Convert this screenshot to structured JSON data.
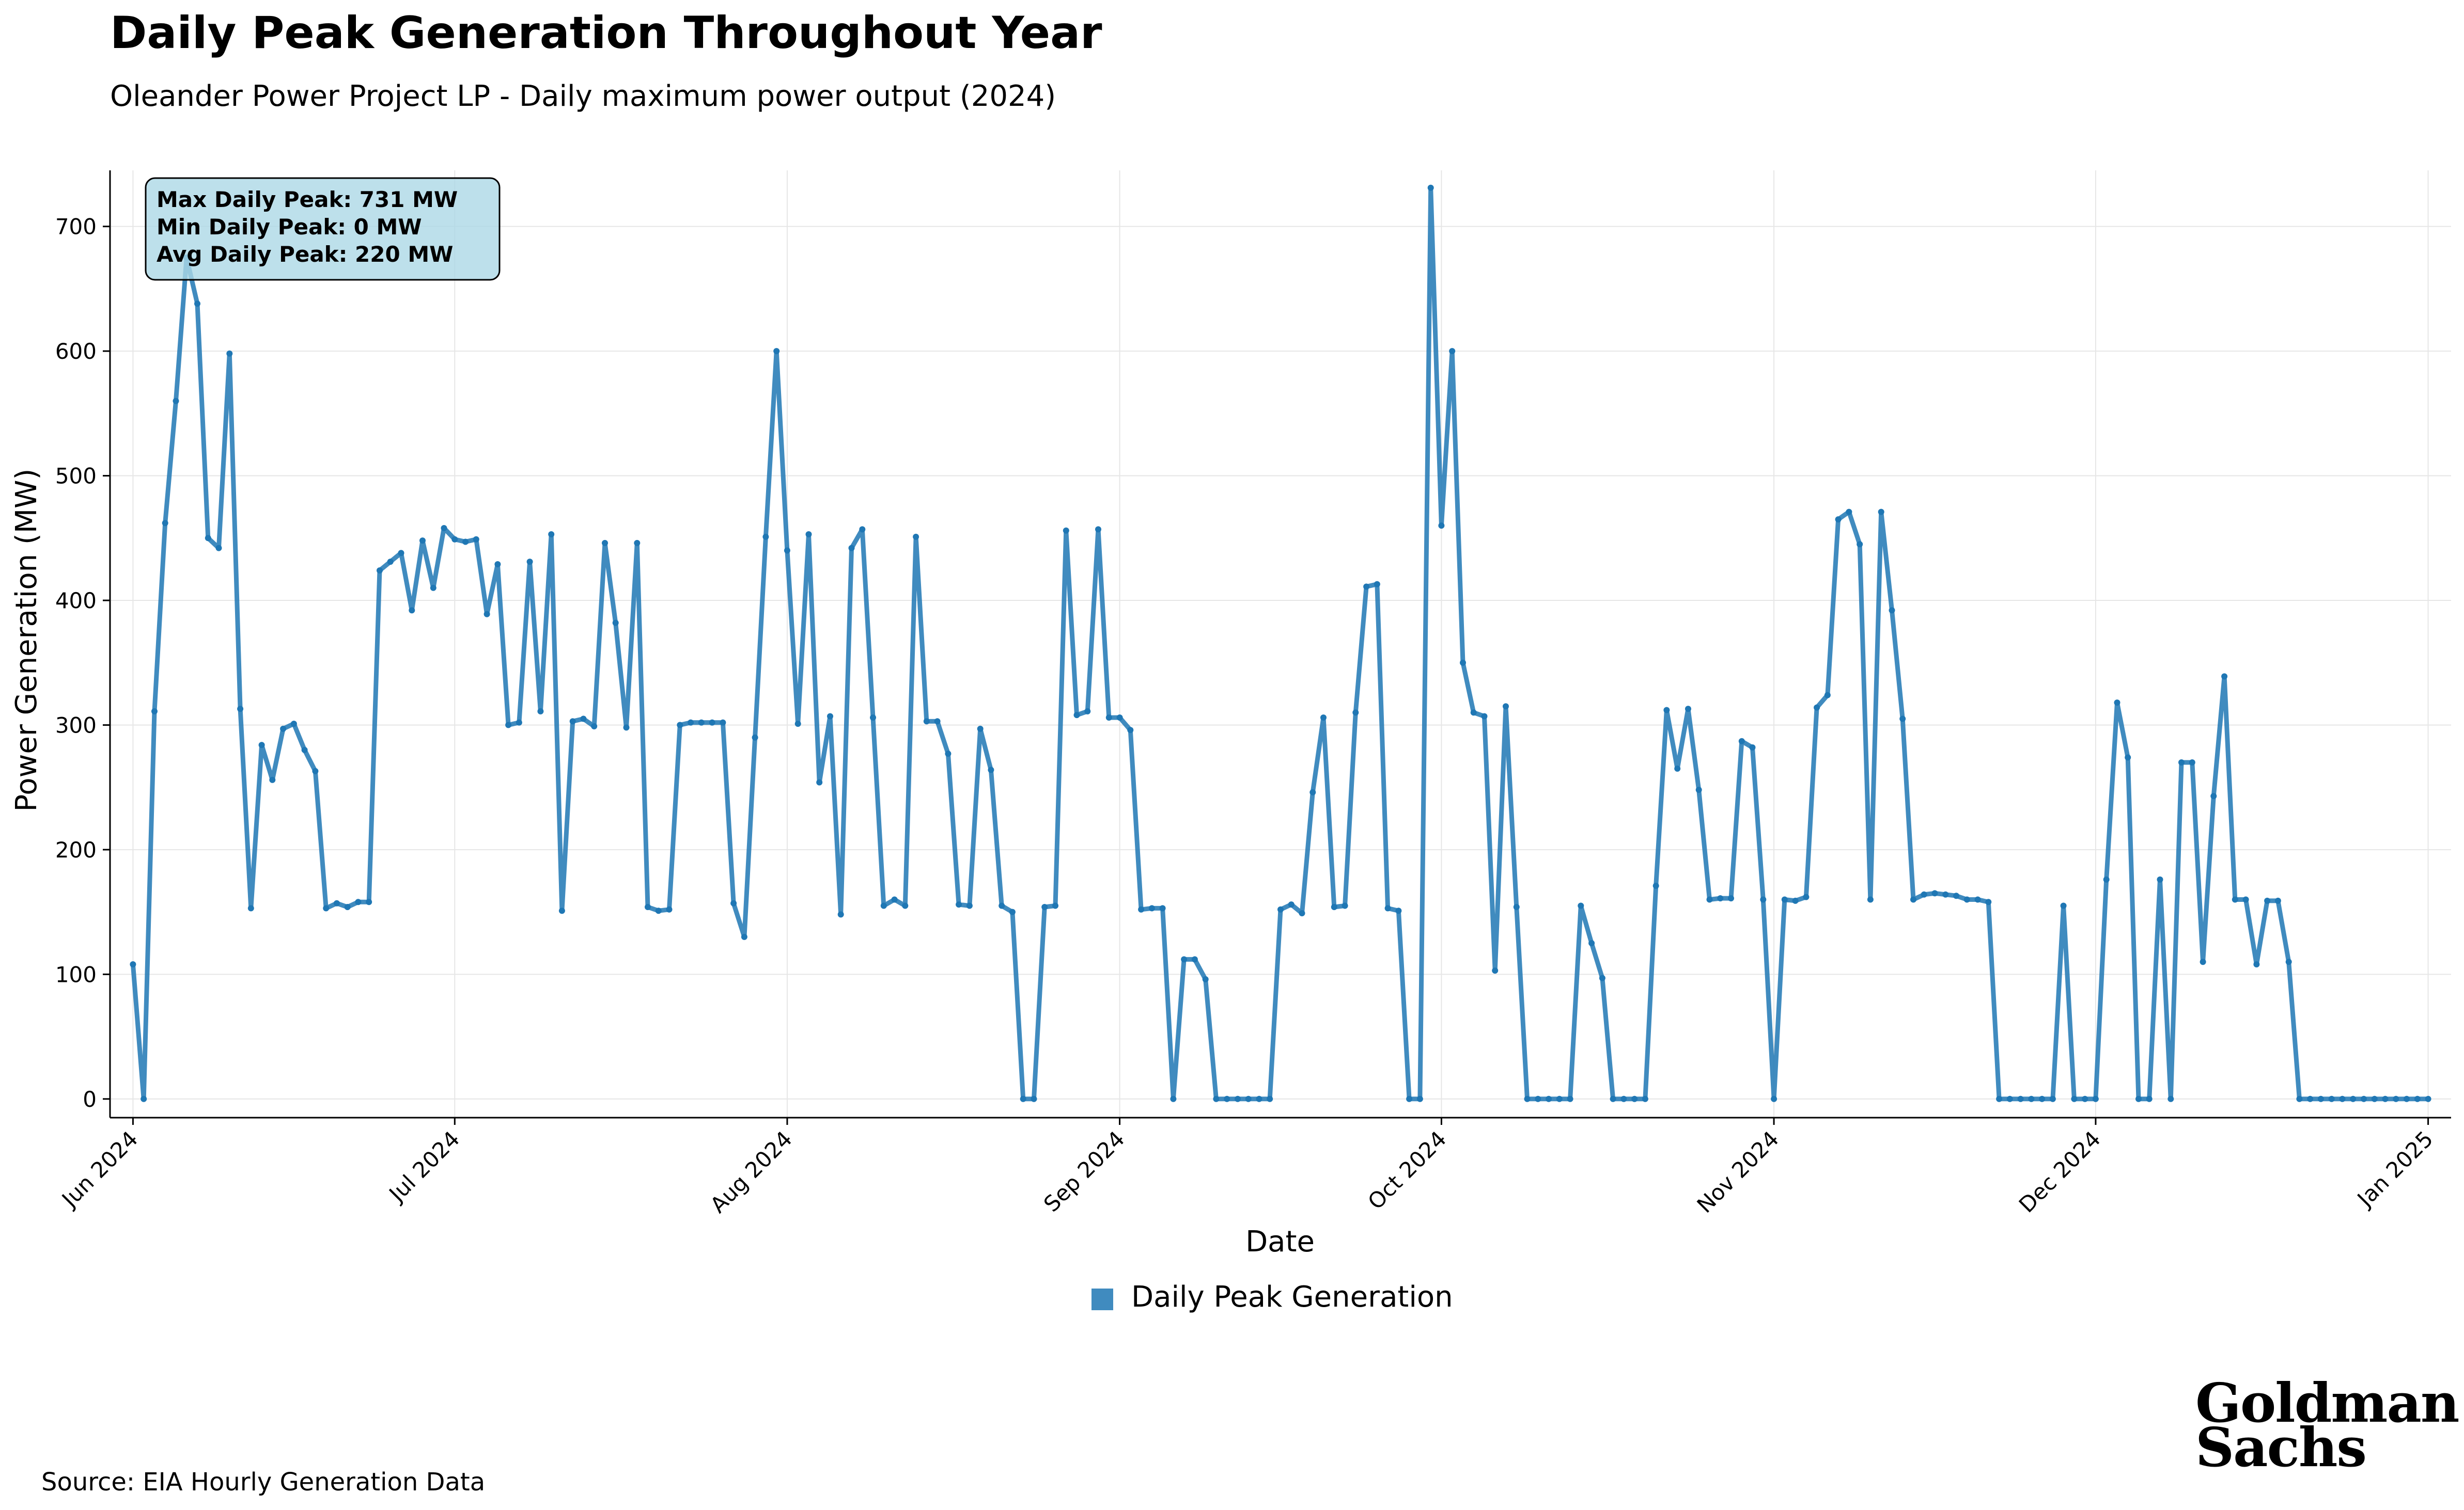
{
  "header": {
    "title": "Daily Peak Generation Throughout Year",
    "subtitle": "Oleander Power Project LP - Daily maximum power output (2024)"
  },
  "footer": {
    "source": "Source: EIA Hourly Generation Data"
  },
  "logo": {
    "line1": "Goldman",
    "line2": "Sachs"
  },
  "colors": {
    "series": "#1f77b4",
    "stats_box_fill": "#add8e6"
  },
  "chart_data": {
    "type": "line",
    "xlabel": "Date",
    "ylabel": "Power Generation (MW)",
    "x_start": "2024-06-01",
    "ylim": [
      -15,
      745
    ],
    "yticks": [
      0,
      100,
      200,
      300,
      400,
      500,
      600,
      700
    ],
    "xticks": [
      "2024-06-01",
      "2024-07-01",
      "2024-08-01",
      "2024-09-01",
      "2024-10-01",
      "2024-11-01",
      "2024-12-01",
      "2025-01-01"
    ],
    "xtick_labels": [
      "Jun 2024",
      "Jul 2024",
      "Aug 2024",
      "Sep 2024",
      "Oct 2024",
      "Nov 2024",
      "Dec 2024",
      "Jan 2025"
    ],
    "grid": true,
    "legend_position": "bottom-center",
    "stats_box": [
      "Max Daily Peak: 731 MW",
      "Min Daily Peak: 0 MW",
      "Avg Daily Peak: 220 MW"
    ],
    "series": [
      {
        "name": "Daily Peak Generation",
        "values": [
          108,
          0,
          311,
          462,
          560,
          675,
          638,
          450,
          442,
          598,
          313,
          153,
          284,
          256,
          297,
          301,
          280,
          263,
          153,
          157,
          154,
          158,
          158,
          424,
          431,
          438,
          392,
          448,
          410,
          458,
          449,
          447,
          449,
          389,
          429,
          300,
          302,
          431,
          311,
          453,
          151,
          303,
          305,
          299,
          446,
          382,
          298,
          446,
          154,
          151,
          152,
          300,
          302,
          302,
          302,
          302,
          157,
          130,
          290,
          451,
          600,
          440,
          301,
          453,
          254,
          307,
          148,
          442,
          457,
          306,
          155,
          160,
          155,
          451,
          303,
          303,
          277,
          156,
          155,
          297,
          264,
          155,
          150,
          0,
          0,
          154,
          155,
          456,
          308,
          311,
          457,
          306,
          306,
          296,
          152,
          153,
          153,
          0,
          112,
          112,
          96,
          0,
          0,
          0,
          0,
          0,
          0,
          152,
          156,
          149,
          246,
          306,
          154,
          155,
          310,
          411,
          413,
          153,
          151,
          0,
          0,
          731,
          460,
          600,
          350,
          310,
          307,
          103,
          315,
          154,
          0,
          0,
          0,
          0,
          0,
          155,
          125,
          97,
          0,
          0,
          0,
          0,
          171,
          312,
          265,
          313,
          248,
          160,
          161,
          161,
          287,
          282,
          160,
          0,
          160,
          159,
          162,
          314,
          324,
          465,
          471,
          445,
          160,
          471,
          392,
          305,
          160,
          164,
          165,
          164,
          163,
          160,
          160,
          158,
          0,
          0,
          0,
          0,
          0,
          0,
          155,
          0,
          0,
          0,
          176,
          318,
          274,
          0,
          0,
          176,
          0,
          270,
          270,
          110,
          243,
          339,
          160,
          160,
          108,
          159,
          159,
          110,
          0,
          0,
          0,
          0,
          0,
          0,
          0,
          0,
          0,
          0,
          0,
          0,
          0
        ]
      }
    ]
  }
}
